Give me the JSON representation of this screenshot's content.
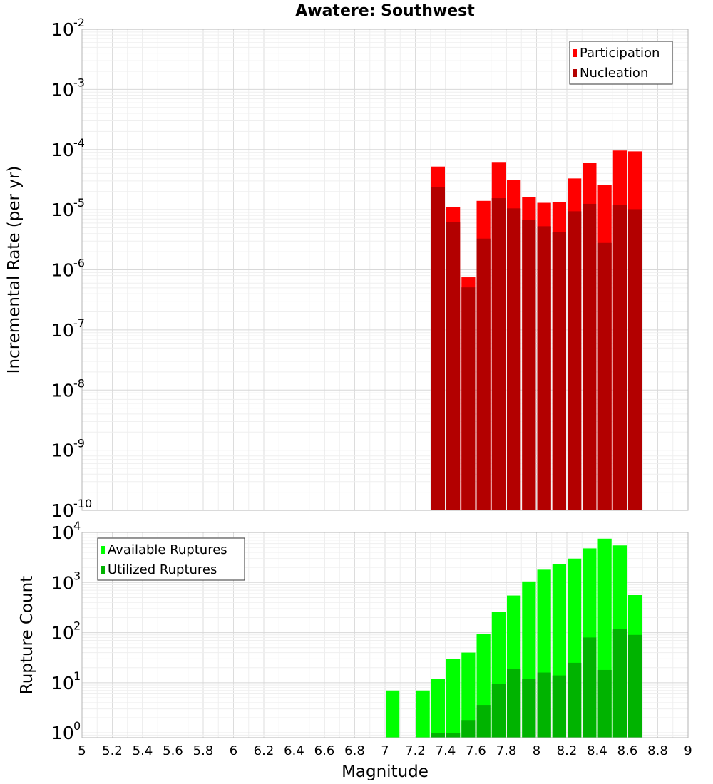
{
  "chart_data": [
    {
      "type": "bar",
      "title": "Awatere: Southwest",
      "xlabel": "",
      "ylabel": "Incremental Rate (per yr)",
      "y_scale": "log",
      "xlim": [
        5,
        9
      ],
      "ylim": [
        1e-10,
        0.01
      ],
      "grid": true,
      "legend_position": "top-right",
      "y_ticks": [
        {
          "base": "10",
          "exp": "-10"
        },
        {
          "base": "10",
          "exp": "-9"
        },
        {
          "base": "10",
          "exp": "-8"
        },
        {
          "base": "10",
          "exp": "-7"
        },
        {
          "base": "10",
          "exp": "-6"
        },
        {
          "base": "10",
          "exp": "-5"
        },
        {
          "base": "10",
          "exp": "-4"
        },
        {
          "base": "10",
          "exp": "-3"
        },
        {
          "base": "10",
          "exp": "-2"
        }
      ],
      "x": [
        7.35,
        7.45,
        7.55,
        7.65,
        7.75,
        7.85,
        7.95,
        8.05,
        8.15,
        8.25,
        8.35,
        8.45,
        8.55,
        8.65
      ],
      "series": [
        {
          "name": "Participation",
          "color": "#ff0000",
          "values": [
            5.2e-05,
            1.1e-05,
            7.5e-07,
            1.4e-05,
            6.2e-05,
            3.1e-05,
            1.6e-05,
            1.3e-05,
            1.35e-05,
            3.3e-05,
            6e-05,
            2.6e-05,
            9.6e-05,
            9.3e-05
          ]
        },
        {
          "name": "Nucleation",
          "color": "#b30000",
          "values": [
            2.4e-05,
            6.2e-06,
            5.1e-07,
            3.3e-06,
            1.55e-05,
            1.05e-05,
            6.8e-06,
            5.3e-06,
            4.3e-06,
            9.4e-06,
            1.25e-05,
            2.8e-06,
            1.2e-05,
            1.02e-05
          ]
        }
      ]
    },
    {
      "type": "bar",
      "title": "",
      "xlabel": "Magnitude",
      "ylabel": "Rupture Count",
      "y_scale": "log",
      "xlim": [
        5,
        9
      ],
      "ylim": [
        0.8,
        10000
      ],
      "grid": true,
      "legend_position": "top-left",
      "y_ticks": [
        {
          "base": "10",
          "exp": "0"
        },
        {
          "base": "10",
          "exp": "1"
        },
        {
          "base": "10",
          "exp": "2"
        },
        {
          "base": "10",
          "exp": "3"
        },
        {
          "base": "10",
          "exp": "4"
        }
      ],
      "x_ticks": [
        "5",
        "5.2",
        "5.4",
        "5.6",
        "5.8",
        "6",
        "6.2",
        "6.4",
        "6.6",
        "6.8",
        "7",
        "7.2",
        "7.4",
        "7.6",
        "7.8",
        "8",
        "8.2",
        "8.4",
        "8.6",
        "8.8",
        "9"
      ],
      "x": [
        7.05,
        7.25,
        7.35,
        7.45,
        7.55,
        7.65,
        7.75,
        7.85,
        7.95,
        8.05,
        8.15,
        8.25,
        8.35,
        8.45,
        8.55,
        8.65
      ],
      "series": [
        {
          "name": "Available Ruptures",
          "color": "#00ff00",
          "values": [
            7,
            7,
            12,
            30,
            40,
            95,
            260,
            550,
            1050,
            1800,
            2300,
            3000,
            4800,
            7500,
            5500,
            560
          ]
        },
        {
          "name": "Utilized Ruptures",
          "color": "#00b300",
          "values": [
            null,
            null,
            1,
            1,
            1.8,
            3.6,
            9.5,
            19,
            12,
            16,
            14,
            25,
            80,
            18,
            120,
            90
          ]
        }
      ]
    }
  ]
}
